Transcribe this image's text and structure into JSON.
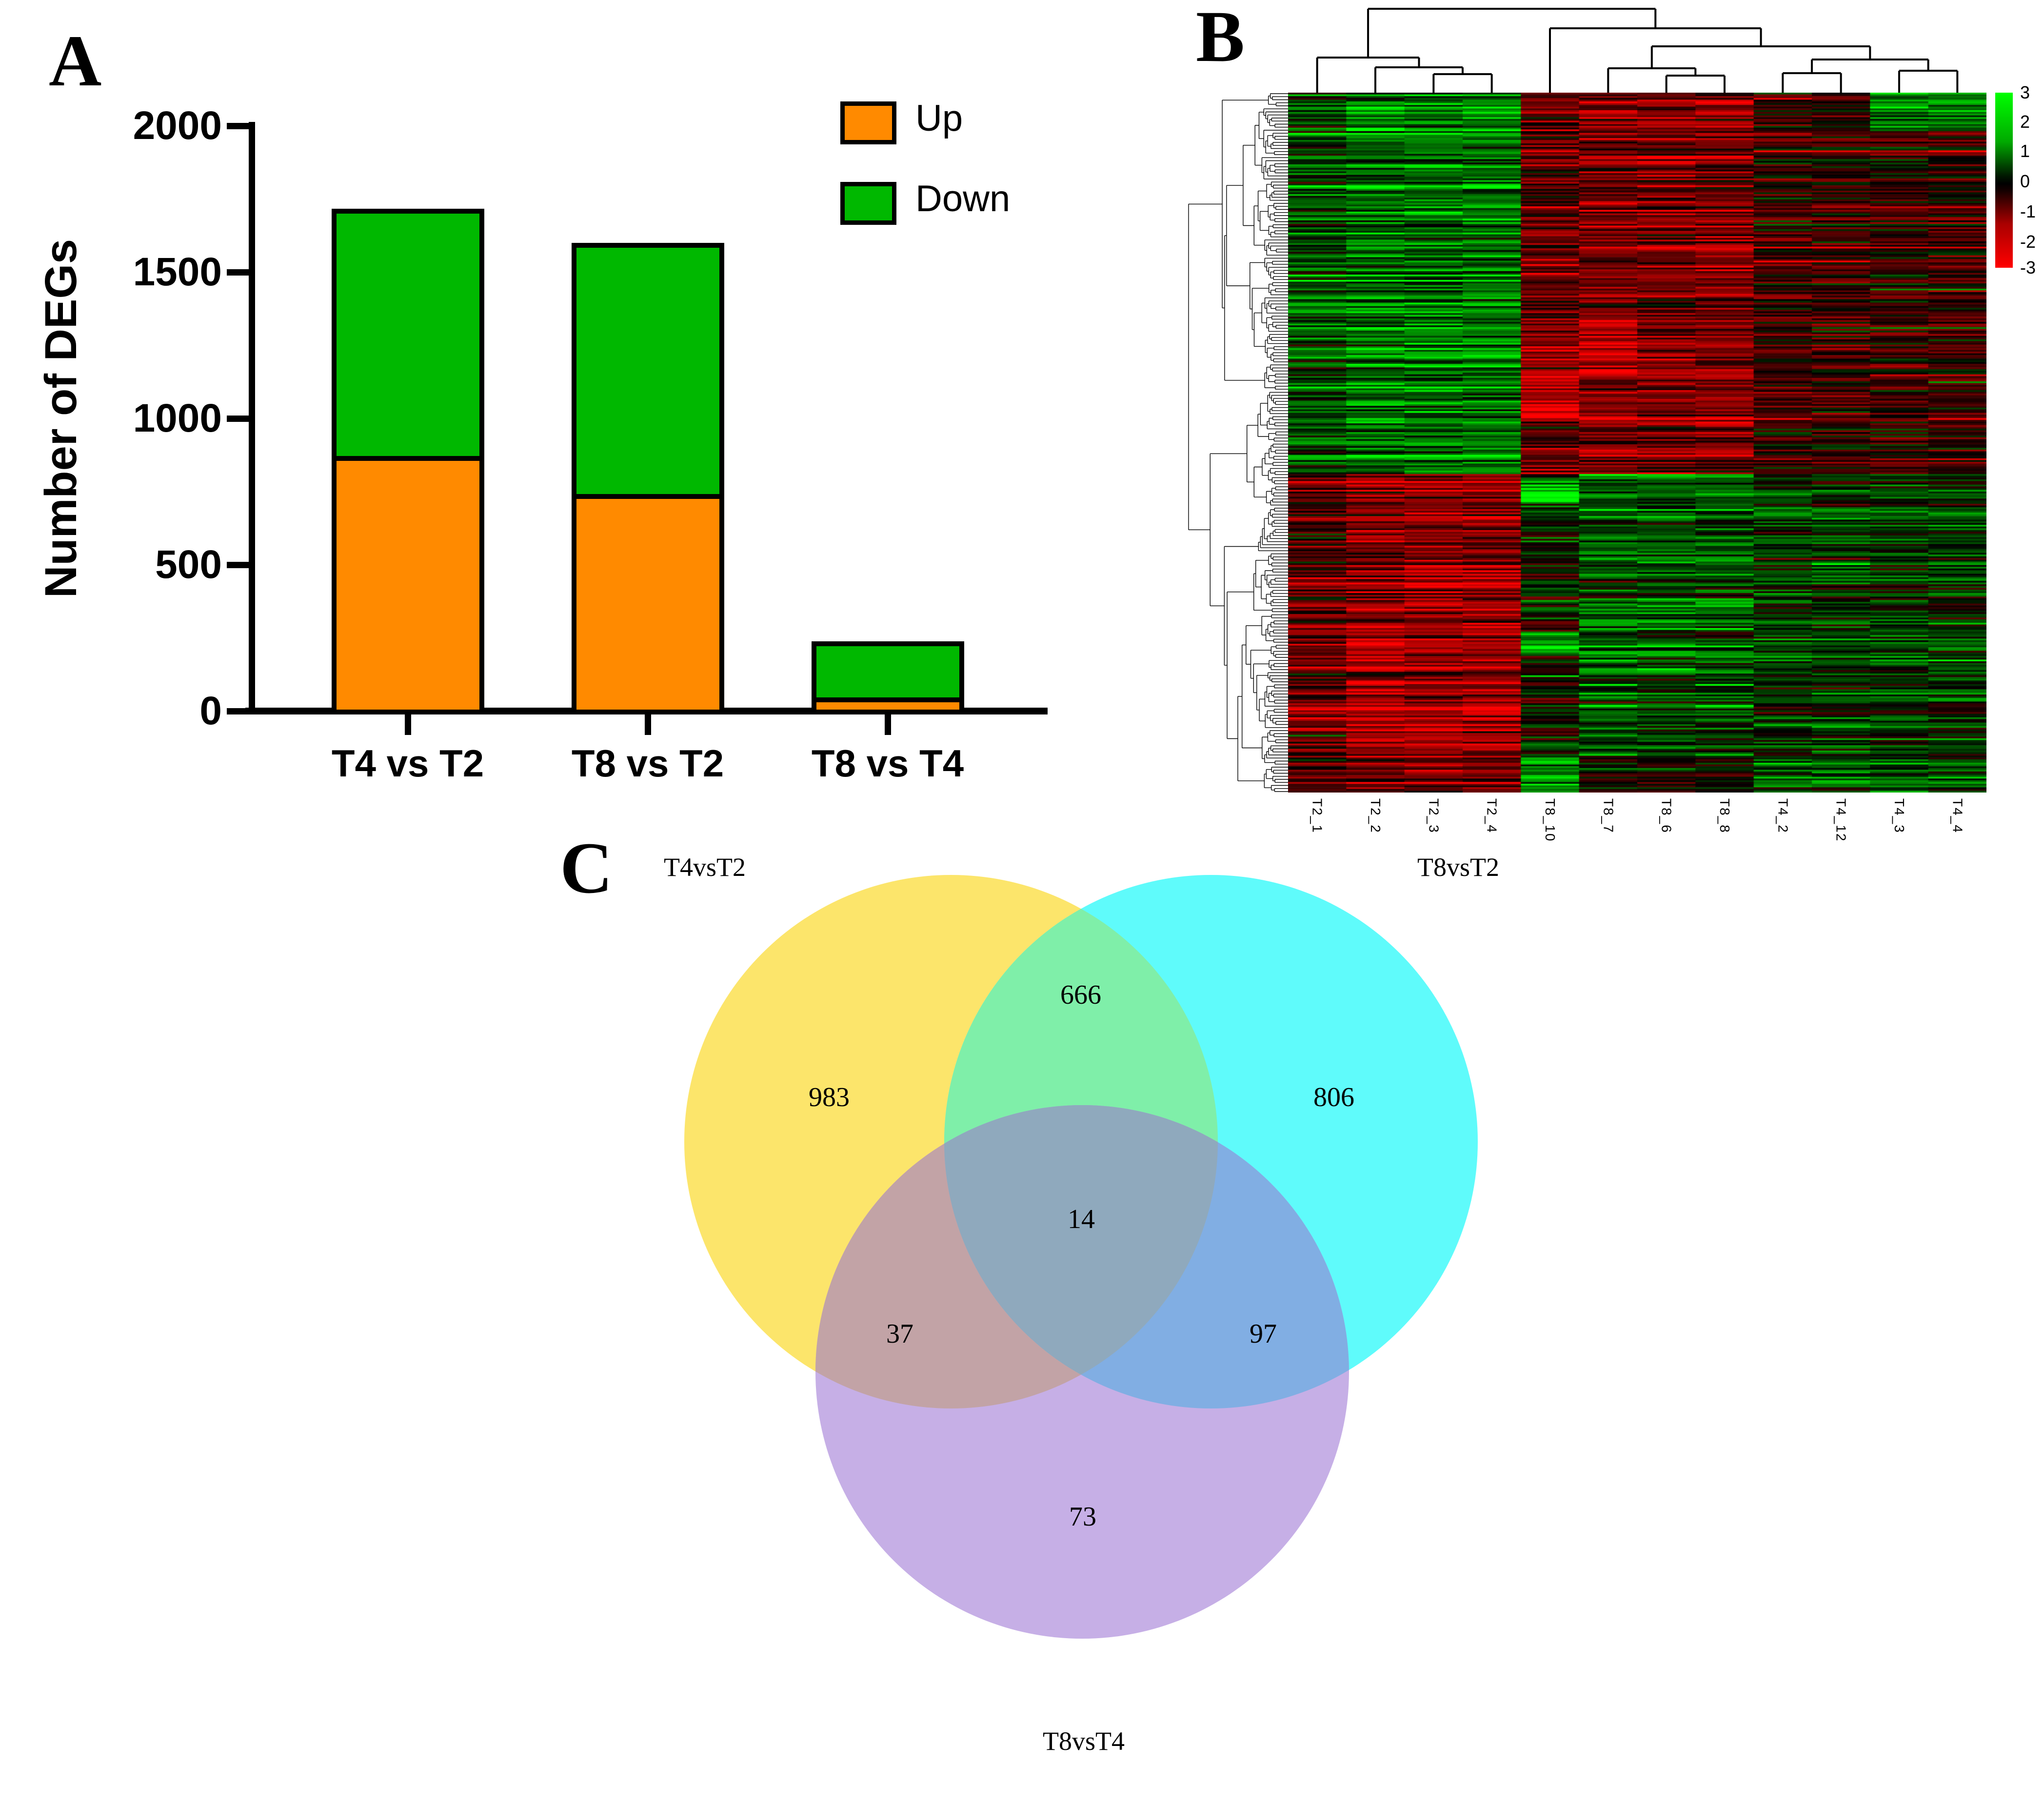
{
  "panels": {
    "a": "A",
    "b": "B",
    "c": "C"
  },
  "chart_data": [
    {
      "type": "bar",
      "panel": "A",
      "stacked": true,
      "title": "",
      "xlabel": "",
      "ylabel": "Number of DEGs",
      "categories": [
        "T4 vs T2",
        "T8 vs T2",
        "T8 vs T4"
      ],
      "series": [
        {
          "name": "Up",
          "color": "#FF8A00",
          "values": [
            875,
            745,
            50
          ]
        },
        {
          "name": "Down",
          "color": "#00B800",
          "values": [
            825,
            838,
            171
          ]
        }
      ],
      "stack_totals": [
        1700,
        1583,
        221
      ],
      "ylim": [
        0,
        2000
      ],
      "yticks": [
        "0",
        "500",
        "1000",
        "1500",
        "2000"
      ],
      "legend_position": "top-right",
      "grid": false
    },
    {
      "type": "heatmap",
      "panel": "B",
      "columns": [
        "T2_1",
        "T2_2",
        "T2_3",
        "T2_4",
        "T8_10",
        "T8_7",
        "T8_6",
        "T8_8",
        "T4_2",
        "T4_12",
        "T4_3",
        "T4_4"
      ],
      "colorbar_ticks": [
        "3",
        "2",
        "1",
        "0",
        "-1",
        "-2",
        "-3"
      ],
      "value_range": [
        -3,
        3
      ],
      "colors": {
        "high": "#00FF00",
        "mid": "#000000",
        "low": "#FF0000"
      },
      "rows": 400,
      "seed": 1234,
      "pattern": {
        "col_groups": {
          "T2": [
            0,
            1,
            2,
            3
          ],
          "T8_10": [
            4
          ],
          "T8": [
            5,
            6,
            7
          ],
          "T4": [
            8,
            9,
            10,
            11
          ]
        },
        "bands": [
          {
            "f": [
              0,
              0.545
            ],
            "group_means": {
              "T2": 1.25,
              "T8_10": -1.1,
              "T8": -1.35,
              "T4": -0.55
            }
          },
          {
            "f": [
              0.545,
              0.95
            ],
            "group_means": {
              "T2": -1.45,
              "T8_10": 0.15,
              "T8": 0.85,
              "T4": 0.55
            }
          },
          {
            "f": [
              0.95,
              1.0
            ],
            "group_means": {
              "T2": -1.2,
              "T8_10": 1.5,
              "T8": -0.15,
              "T4": 0.8
            }
          }
        ],
        "col_gain": {
          "0": 0.6
        },
        "exceptions": [
          {
            "cols": [
              10,
              11
            ],
            "f": [
              0,
              0.055
            ],
            "mean": 1.1
          },
          {
            "cols": [
              4
            ],
            "f": [
              0.4,
              0.47
            ],
            "mean": -2.3
          },
          {
            "cols": [
              5
            ],
            "f": [
              0.32,
              0.4
            ],
            "mean": -2.0
          },
          {
            "cols": [
              4
            ],
            "f": [
              0.555,
              0.585
            ],
            "mean": 2.4
          },
          {
            "cols": [
              4
            ],
            "f": [
              0.77,
              0.8
            ],
            "mean": 2.0
          },
          {
            "cols": [
              4
            ],
            "f": [
              0.95,
              1.0
            ],
            "mean": 1.8
          }
        ],
        "row_noise": 0.55,
        "cell_noise": 0.75,
        "band_prob": 0.1,
        "band_gain": 1.7
      },
      "column_dendrogram": {
        "merges": [
          [
            "c2",
            "c3",
            152
          ],
          [
            "c1",
            "m0",
            138
          ],
          [
            "c0",
            "m1",
            118
          ],
          [
            "c6",
            "c7",
            155
          ],
          [
            "c5",
            "m3",
            140
          ],
          [
            "c8",
            "c9",
            150
          ],
          [
            "c10",
            "c11",
            145
          ],
          [
            "m5",
            "m6",
            122
          ],
          [
            "m4",
            "m7",
            95
          ],
          [
            "c4",
            "m8",
            58
          ],
          [
            "m2",
            "m9",
            18
          ]
        ]
      },
      "row_dendrogram": {
        "leaves": 230,
        "seed": 77
      }
    },
    {
      "type": "venn",
      "panel": "C",
      "sets": [
        {
          "label": "T4vsT2",
          "color": "#FCE56B"
        },
        {
          "label": "T8vsT2",
          "color": "#5FFBFB"
        },
        {
          "label": "T8vsT4",
          "color": "#C6AFE6"
        }
      ],
      "overlap_colors": {
        "T4vsT2_T8vsT2": "#7FEFA9",
        "T4vsT2_T8vsT4": "#C2A3A6",
        "T8vsT2_T8vsT4": "#81AEE3",
        "center": "#8FA9BD"
      },
      "regions": [
        {
          "sets": [
            "T4vsT2"
          ],
          "value": "983"
        },
        {
          "sets": [
            "T4vsT2",
            "T8vsT2"
          ],
          "value": "666"
        },
        {
          "sets": [
            "T8vsT2"
          ],
          "value": "806"
        },
        {
          "sets": [
            "T4vsT2",
            "T8vsT4"
          ],
          "value": "37"
        },
        {
          "sets": [
            "T4vsT2",
            "T8vsT2",
            "T8vsT4"
          ],
          "value": "14"
        },
        {
          "sets": [
            "T8vsT2",
            "T8vsT4"
          ],
          "value": "97"
        },
        {
          "sets": [
            "T8vsT4"
          ],
          "value": "73"
        }
      ]
    }
  ]
}
